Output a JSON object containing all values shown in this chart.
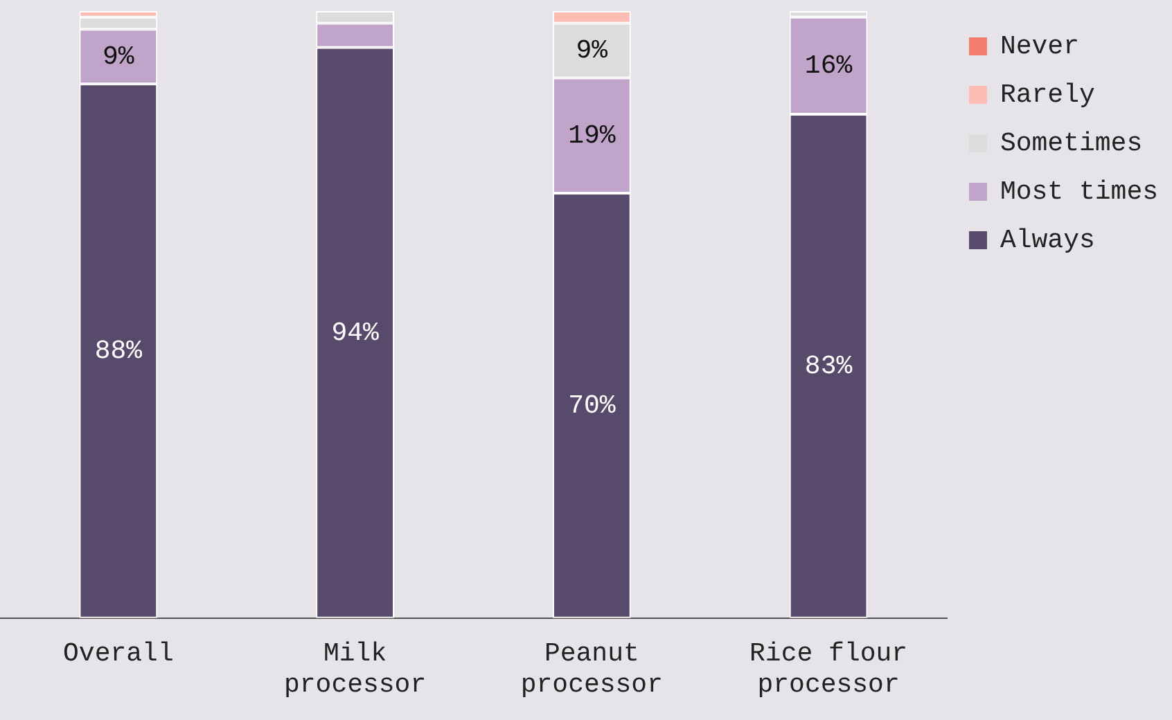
{
  "chart_data": {
    "type": "bar",
    "stacked": true,
    "categories": [
      "Overall",
      "Milk processor",
      "Peanut processor",
      "Rice flour processor"
    ],
    "series": [
      {
        "name": "Always",
        "color": "#574a6b",
        "values": [
          88,
          94,
          70,
          83
        ],
        "value_labels": [
          "88%",
          "94%",
          "70%",
          "83%"
        ]
      },
      {
        "name": "Most times",
        "color": "#c0a4c9",
        "values": [
          9,
          4,
          19,
          16
        ],
        "value_labels": [
          "9%",
          null,
          "19%",
          "16%"
        ]
      },
      {
        "name": "Sometimes",
        "color": "#dcdcdc",
        "values": [
          2,
          2,
          9,
          1
        ],
        "value_labels": [
          null,
          null,
          "9%",
          null
        ]
      },
      {
        "name": "Rarely",
        "color": "#fdbcb4",
        "values": [
          1,
          0,
          2,
          0
        ],
        "value_labels": [
          null,
          null,
          null,
          null
        ]
      },
      {
        "name": "Never",
        "color": "#f47c6c",
        "values": [
          0,
          0,
          0,
          0
        ],
        "value_labels": [
          null,
          null,
          null,
          null
        ]
      }
    ],
    "ylim": [
      0,
      100
    ],
    "tick_labels": "x",
    "grid": false,
    "legend": "right"
  }
}
